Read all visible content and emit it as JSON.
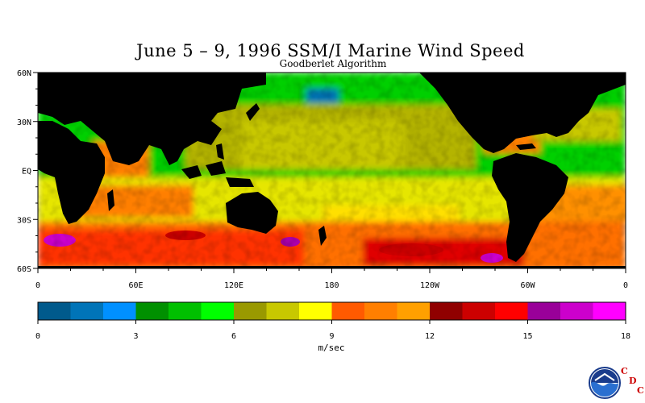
{
  "title": "June 5 – 9, 1996 SSM/I Marine Wind Speed",
  "subtitle": "Goodberlet Algorithm",
  "map": {
    "lat_labels": [
      "60N",
      "30N",
      "EQ",
      "30S",
      "60S"
    ],
    "lat_values": [
      60,
      30,
      0,
      -30,
      -60
    ],
    "lon_labels": [
      "0",
      "60E",
      "120E",
      "180",
      "120W",
      "60W",
      "0"
    ],
    "lon_values": [
      0,
      60,
      120,
      180,
      240,
      300,
      360
    ],
    "land_color": "#000000"
  },
  "colorbar": {
    "colors": [
      "#005a8c",
      "#0074b8",
      "#0090ff",
      "#009000",
      "#00c000",
      "#00ff00",
      "#999900",
      "#c8c800",
      "#ffff00",
      "#ff5a00",
      "#ff7f00",
      "#ffa000",
      "#900000",
      "#cc0000",
      "#ff0000",
      "#990099",
      "#cc00cc",
      "#ff00ff"
    ],
    "min": 0,
    "max": 18,
    "tick_labels": [
      "0",
      "3",
      "6",
      "9",
      "12",
      "15",
      "18"
    ],
    "units": "m/sec"
  },
  "logo": {
    "name": "NOAA",
    "letters": [
      "C",
      "D",
      "C"
    ]
  }
}
